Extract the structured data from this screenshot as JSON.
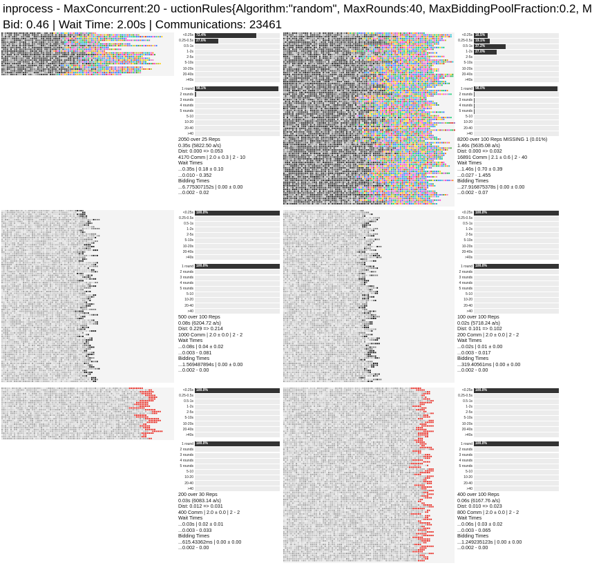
{
  "header": {
    "title": "inprocess - MaxConcurrent:20 - uctionRules{Algorithm:\"random\", MaxRounds:40, MaxBiddingPoolFraction:0.2, M",
    "subtitle": "Bid: 0.46 | Wait Time: 2.00s | Communications: 23461"
  },
  "time_labels": [
    "<0.25s",
    "0.25-0.5s",
    "0.5-1s",
    "1-2s",
    "2-5s",
    "5-10s",
    "10-20s",
    "20-40s",
    ">40s"
  ],
  "round_labels": [
    "1 round",
    "2 rounds",
    "3 rounds",
    "4 rounds",
    "5 rounds",
    "5-10",
    "10-20",
    "20-40",
    ">40"
  ],
  "colors": {
    "bar": "#333333",
    "track": "#ececec",
    "grid_bg": "#f4f4f4",
    "winner": "#e8241c"
  },
  "panels": [
    {
      "id": "p1",
      "time_hist": [
        {
          "label": "72.4%",
          "value": 72.4
        },
        {
          "label": "27.6%",
          "value": 27.6
        },
        {
          "label": "",
          "value": 0
        },
        {
          "label": "",
          "value": 0
        },
        {
          "label": "",
          "value": 0
        },
        {
          "label": "",
          "value": 0
        },
        {
          "label": "",
          "value": 0
        },
        {
          "label": "",
          "value": 0
        },
        {
          "label": "",
          "value": 0
        }
      ],
      "round_hist": [
        {
          "label": "98.1%",
          "value": 98.1
        },
        {
          "label": "",
          "value": 1.9
        },
        {
          "label": "",
          "value": 0
        },
        {
          "label": "",
          "value": 0
        },
        {
          "label": "",
          "value": 0
        },
        {
          "label": "",
          "value": 0
        },
        {
          "label": "",
          "value": 0
        },
        {
          "label": "",
          "value": 0
        },
        {
          "label": "",
          "value": 0
        }
      ],
      "stats": [
        "2050 over 25 Reps",
        "0.35s (5822.50 a/s)",
        "Dist: 0.000 => 0.053",
        "4170 Comm | 2.0 ± 0.3 | 2 - 10",
        "Wait Times",
        "...0.35s | 0.18 ± 0.10",
        "...0.010 - 0.352",
        "Bidding Times",
        "...6.775307152s | 0.00 ± 0.00",
        "...0.002 - 0.02"
      ]
    },
    {
      "id": "p2",
      "time_hist": [
        {
          "label": "16.5%",
          "value": 16.5
        },
        {
          "label": "19.1%",
          "value": 19.1
        },
        {
          "label": "37.2%",
          "value": 37.2
        },
        {
          "label": "27.0%",
          "value": 27.0
        },
        {
          "label": "",
          "value": 0
        },
        {
          "label": "",
          "value": 0
        },
        {
          "label": "",
          "value": 0
        },
        {
          "label": "",
          "value": 0
        },
        {
          "label": "",
          "value": 0
        }
      ],
      "round_hist": [
        {
          "label": "98.0%",
          "value": 98.0
        },
        {
          "label": "",
          "value": 1.2
        },
        {
          "label": "",
          "value": 0.5
        },
        {
          "label": "",
          "value": 0.2
        },
        {
          "label": "",
          "value": 0.1
        },
        {
          "label": "",
          "value": 0
        },
        {
          "label": "",
          "value": 0
        },
        {
          "label": "",
          "value": 0
        },
        {
          "label": "",
          "value": 0
        }
      ],
      "stats": [
        "8200 over 100 Reps MISSING 1 (0.01%)",
        "1.46s (5635.08 a/s)",
        "Dist: 0.000 => 0.032",
        "16891 Comm | 2.1 ± 0.6 | 2 - 40",
        "Wait Times",
        "...1.46s | 0.70 ± 0.39",
        "...0.027 - 1.455",
        "Bidding Times",
        "...27.916875378s | 0.00 ± 0.00",
        "...0.002 - 0.07"
      ]
    },
    {
      "id": "p3",
      "time_hist": [
        {
          "label": "100.0%",
          "value": 100
        },
        {
          "label": "",
          "value": 0
        },
        {
          "label": "",
          "value": 0
        },
        {
          "label": "",
          "value": 0
        },
        {
          "label": "",
          "value": 0
        },
        {
          "label": "",
          "value": 0
        },
        {
          "label": "",
          "value": 0
        },
        {
          "label": "",
          "value": 0
        },
        {
          "label": "",
          "value": 0
        }
      ],
      "round_hist": [
        {
          "label": "100.0%",
          "value": 100
        },
        {
          "label": "",
          "value": 0
        },
        {
          "label": "",
          "value": 0
        },
        {
          "label": "",
          "value": 0
        },
        {
          "label": "",
          "value": 0
        },
        {
          "label": "",
          "value": 0
        },
        {
          "label": "",
          "value": 0
        },
        {
          "label": "",
          "value": 0
        },
        {
          "label": "",
          "value": 0
        }
      ],
      "stats": [
        "500 over 100 Reps",
        "0.08s (6204.72 a/s)",
        "Dist: 0.229 => 0.214",
        "1000 Comm | 2.0 ± 0.0 | 2 - 2",
        "Wait Times",
        "...0.08s | 0.04 ± 0.02",
        "...0.003 - 0.081",
        "Bidding Times",
        "...1.569487894s | 0.00 ± 0.00",
        "...0.002 - 0.00"
      ]
    },
    {
      "id": "p4",
      "time_hist": [
        {
          "label": "100.0%",
          "value": 100
        },
        {
          "label": "",
          "value": 0
        },
        {
          "label": "",
          "value": 0
        },
        {
          "label": "",
          "value": 0
        },
        {
          "label": "",
          "value": 0
        },
        {
          "label": "",
          "value": 0
        },
        {
          "label": "",
          "value": 0
        },
        {
          "label": "",
          "value": 0
        },
        {
          "label": "",
          "value": 0
        }
      ],
      "round_hist": [
        {
          "label": "100.0%",
          "value": 100
        },
        {
          "label": "",
          "value": 0
        },
        {
          "label": "",
          "value": 0
        },
        {
          "label": "",
          "value": 0
        },
        {
          "label": "",
          "value": 0
        },
        {
          "label": "",
          "value": 0
        },
        {
          "label": "",
          "value": 0
        },
        {
          "label": "",
          "value": 0
        },
        {
          "label": "",
          "value": 0
        }
      ],
      "stats": [
        "100 over 100 Reps",
        "0.02s (5718.24 a/s)",
        "Dist: 0.101 => 0.102",
        "200 Comm | 2.0 ± 0.0 | 2 - 2",
        "Wait Times",
        "...0.02s | 0.01 ± 0.00",
        "...0.003 - 0.017",
        "Bidding Times",
        "...319.40561ms | 0.00 ± 0.00",
        "...0.002 - 0.00"
      ]
    },
    {
      "id": "p5",
      "time_hist": [
        {
          "label": "100.0%",
          "value": 100
        },
        {
          "label": "",
          "value": 0
        },
        {
          "label": "",
          "value": 0
        },
        {
          "label": "",
          "value": 0
        },
        {
          "label": "",
          "value": 0
        },
        {
          "label": "",
          "value": 0
        },
        {
          "label": "",
          "value": 0
        },
        {
          "label": "",
          "value": 0
        },
        {
          "label": "",
          "value": 0
        }
      ],
      "round_hist": [
        {
          "label": "100.0%",
          "value": 100
        },
        {
          "label": "",
          "value": 0
        },
        {
          "label": "",
          "value": 0
        },
        {
          "label": "",
          "value": 0
        },
        {
          "label": "",
          "value": 0
        },
        {
          "label": "",
          "value": 0
        },
        {
          "label": "",
          "value": 0
        },
        {
          "label": "",
          "value": 0
        },
        {
          "label": "",
          "value": 0
        }
      ],
      "stats": [
        "200 over 30 Reps",
        "0.03s (6083.14 a/s)",
        "Dist: 0.012 => 0.031",
        "400 Comm | 2.0 ± 0.0 | 2 - 2",
        "Wait Times",
        "...0.03s | 0.02 ± 0.01",
        "...0.003 - 0.033",
        "Bidding Times",
        "...615.43362ms | 0.00 ± 0.00",
        "...0.002 - 0.00"
      ]
    },
    {
      "id": "p6",
      "time_hist": [
        {
          "label": "100.0%",
          "value": 100
        },
        {
          "label": "",
          "value": 0
        },
        {
          "label": "",
          "value": 0
        },
        {
          "label": "",
          "value": 0
        },
        {
          "label": "",
          "value": 0
        },
        {
          "label": "",
          "value": 0
        },
        {
          "label": "",
          "value": 0
        },
        {
          "label": "",
          "value": 0
        },
        {
          "label": "",
          "value": 0
        }
      ],
      "round_hist": [
        {
          "label": "100.0%",
          "value": 100
        },
        {
          "label": "",
          "value": 0
        },
        {
          "label": "",
          "value": 0
        },
        {
          "label": "",
          "value": 0
        },
        {
          "label": "",
          "value": 0
        },
        {
          "label": "",
          "value": 0
        },
        {
          "label": "",
          "value": 0
        },
        {
          "label": "",
          "value": 0
        },
        {
          "label": "",
          "value": 0
        }
      ],
      "stats": [
        "400 over 100 Reps",
        "0.06s (6167.76 a/s)",
        "Dist: 0.010 => 0.023",
        "800 Comm | 2.0 ± 0.0 | 2 - 2",
        "Wait Times",
        "...0.06s | 0.03 ± 0.02",
        "...0.003 - 0.065",
        "Bidding Times",
        "...1.249235123s | 0.00 ± 0.00",
        "...0.002 - 0.00"
      ]
    }
  ],
  "chart_data": [
    {
      "type": "bar",
      "panel": "p1",
      "categories": [
        "<0.25s",
        "0.25-0.5s",
        "0.5-1s",
        "1-2s",
        "2-5s",
        "5-10s",
        "10-20s",
        "20-40s",
        ">40s"
      ],
      "values": [
        72.4,
        27.6,
        0,
        0,
        0,
        0,
        0,
        0,
        0
      ]
    },
    {
      "type": "bar",
      "panel": "p1",
      "categories": [
        "1 round",
        "2 rounds",
        "3 rounds",
        "4 rounds",
        "5 rounds",
        "5-10",
        "10-20",
        "20-40",
        ">40"
      ],
      "values": [
        98.1,
        1.9,
        0,
        0,
        0,
        0,
        0,
        0,
        0
      ]
    },
    {
      "type": "bar",
      "panel": "p2",
      "categories": [
        "<0.25s",
        "0.25-0.5s",
        "0.5-1s",
        "1-2s",
        "2-5s",
        "5-10s",
        "10-20s",
        "20-40s",
        ">40s"
      ],
      "values": [
        16.5,
        19.1,
        37.2,
        27.0,
        0,
        0,
        0,
        0,
        0
      ]
    },
    {
      "type": "bar",
      "panel": "p2",
      "categories": [
        "1 round",
        "2 rounds",
        "3 rounds",
        "4 rounds",
        "5 rounds",
        "5-10",
        "10-20",
        "20-40",
        ">40"
      ],
      "values": [
        98.0,
        1.2,
        0.5,
        0.2,
        0.1,
        0,
        0,
        0,
        0
      ]
    },
    {
      "type": "bar",
      "panel": "p3",
      "categories": [
        "<0.25s",
        "0.25-0.5s",
        "0.5-1s",
        "1-2s",
        "2-5s",
        "5-10s",
        "10-20s",
        "20-40s",
        ">40s"
      ],
      "values": [
        100,
        0,
        0,
        0,
        0,
        0,
        0,
        0,
        0
      ]
    },
    {
      "type": "bar",
      "panel": "p3",
      "categories": [
        "1 round",
        "2 rounds",
        "3 rounds",
        "4 rounds",
        "5 rounds",
        "5-10",
        "10-20",
        "20-40",
        ">40"
      ],
      "values": [
        100,
        0,
        0,
        0,
        0,
        0,
        0,
        0,
        0
      ]
    },
    {
      "type": "bar",
      "panel": "p4",
      "categories": [
        "<0.25s",
        "0.25-0.5s",
        "0.5-1s",
        "1-2s",
        "2-5s",
        "5-10s",
        "10-20s",
        "20-40s",
        ">40s"
      ],
      "values": [
        100,
        0,
        0,
        0,
        0,
        0,
        0,
        0,
        0
      ]
    },
    {
      "type": "bar",
      "panel": "p4",
      "categories": [
        "1 round",
        "2 rounds",
        "3 rounds",
        "4 rounds",
        "5 rounds",
        "5-10",
        "10-20",
        "20-40",
        ">40"
      ],
      "values": [
        100,
        0,
        0,
        0,
        0,
        0,
        0,
        0,
        0
      ]
    },
    {
      "type": "bar",
      "panel": "p5",
      "categories": [
        "<0.25s",
        "0.25-0.5s",
        "0.5-1s",
        "1-2s",
        "2-5s",
        "5-10s",
        "10-20s",
        "20-40s",
        ">40s"
      ],
      "values": [
        100,
        0,
        0,
        0,
        0,
        0,
        0,
        0,
        0
      ]
    },
    {
      "type": "bar",
      "panel": "p5",
      "categories": [
        "1 round",
        "2 rounds",
        "3 rounds",
        "4 rounds",
        "5 rounds",
        "5-10",
        "10-20",
        "20-40",
        ">40"
      ],
      "values": [
        100,
        0,
        0,
        0,
        0,
        0,
        0,
        0,
        0
      ]
    },
    {
      "type": "bar",
      "panel": "p6",
      "categories": [
        "<0.25s",
        "0.25-0.5s",
        "0.5-1s",
        "1-2s",
        "2-5s",
        "5-10s",
        "10-20s",
        "20-40s",
        ">40s"
      ],
      "values": [
        100,
        0,
        0,
        0,
        0,
        0,
        0,
        0,
        0
      ]
    },
    {
      "type": "bar",
      "panel": "p6",
      "categories": [
        "1 round",
        "2 rounds",
        "3 rounds",
        "4 rounds",
        "5 rounds",
        "5-10",
        "10-20",
        "20-40",
        ">40"
      ],
      "values": [
        100,
        0,
        0,
        0,
        0,
        0,
        0,
        0,
        0
      ]
    }
  ]
}
